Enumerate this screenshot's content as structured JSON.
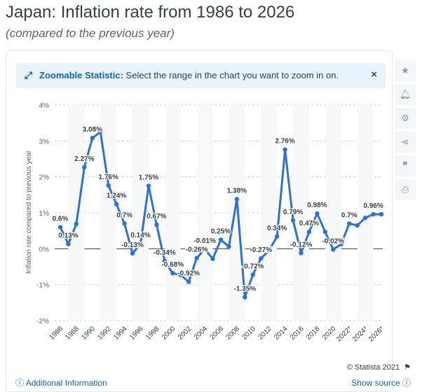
{
  "header": {
    "title": "Japan: Inflation rate from 1986 to 2026",
    "subtitle": "(compared to the previous year)"
  },
  "banner": {
    "bold": "Zoomable Statistic:",
    "text": "Select the range in the chart you want to zoom in on.",
    "close": "×"
  },
  "side_icons": [
    "star-icon",
    "bell-icon",
    "gear-icon",
    "share-icon",
    "quote-icon",
    "print-icon"
  ],
  "footer": {
    "copyright": "© Statista 2021",
    "additional_info": "Additional Information",
    "show_source": "Show source"
  },
  "colors": {
    "line": "#2a72d8",
    "grid": "#c9d0d8",
    "accent": "#0b65c2"
  },
  "chart_data": {
    "type": "line",
    "ylabel": "Inflation rate compared to previous year",
    "ylim": [
      -2,
      4
    ],
    "yticks": [
      -2,
      -1,
      0,
      1,
      2,
      3,
      4
    ],
    "ytick_labels": [
      "-2%",
      "-1%",
      "0%",
      "1%",
      "2%",
      "3%",
      "4%"
    ],
    "xticks": [
      "1986",
      "1988",
      "1990",
      "1992",
      "1994",
      "1996",
      "1998",
      "2000",
      "2002",
      "2004",
      "2006",
      "2008",
      "2010",
      "2012",
      "2014",
      "2016",
      "2018",
      "2020",
      "2022*",
      "2024*",
      "2026*"
    ],
    "x": [
      1986,
      1987,
      1988,
      1989,
      1990,
      1991,
      1992,
      1993,
      1994,
      1995,
      1996,
      1997,
      1998,
      1999,
      2000,
      2001,
      2002,
      2003,
      2004,
      2005,
      2006,
      2007,
      2008,
      2009,
      2010,
      2011,
      2012,
      2013,
      2014,
      2015,
      2016,
      2017,
      2018,
      2019,
      2020,
      2021,
      2022,
      2023,
      2024,
      2025,
      2026
    ],
    "values": [
      0.6,
      0.13,
      0.69,
      2.27,
      3.08,
      3.25,
      1.76,
      1.24,
      0.7,
      -0.13,
      0.14,
      1.75,
      0.67,
      -0.34,
      -0.68,
      -0.73,
      -0.92,
      -0.26,
      -0.01,
      -0.28,
      0.25,
      0.06,
      1.38,
      -1.35,
      -0.72,
      -0.27,
      -0.05,
      0.34,
      2.76,
      0.79,
      -0.12,
      0.47,
      0.98,
      0.47,
      -0.02,
      0.13,
      0.7,
      0.65,
      0.86,
      0.96,
      0.96
    ],
    "data_labels": [
      {
        "x": 1986,
        "text": "0.6%"
      },
      {
        "x": 1987,
        "text": "0.13%"
      },
      {
        "x": 1989,
        "text": "2.27%"
      },
      {
        "x": 1990,
        "text": "3.08%"
      },
      {
        "x": 1992,
        "text": "1.76%"
      },
      {
        "x": 1993,
        "text": "1.24%"
      },
      {
        "x": 1994,
        "text": "0.7%"
      },
      {
        "x": 1995,
        "text": "-0.13%"
      },
      {
        "x": 1996,
        "text": "0.14%"
      },
      {
        "x": 1997,
        "text": "1.75%"
      },
      {
        "x": 1998,
        "text": "0.67%"
      },
      {
        "x": 1999,
        "text": "-0.34%"
      },
      {
        "x": 2000,
        "text": "-0.68%"
      },
      {
        "x": 2002,
        "text": "-0.92%"
      },
      {
        "x": 2003,
        "text": "-0.26%"
      },
      {
        "x": 2004,
        "text": "-0.01%"
      },
      {
        "x": 2006,
        "text": "0.25%"
      },
      {
        "x": 2008,
        "text": "1.38%"
      },
      {
        "x": 2009,
        "text": "-1.35%"
      },
      {
        "x": 2010,
        "text": "-0.72%"
      },
      {
        "x": 2011,
        "text": "-0.27%"
      },
      {
        "x": 2013,
        "text": "0.34%"
      },
      {
        "x": 2014,
        "text": "2.76%"
      },
      {
        "x": 2015,
        "text": "0.79%"
      },
      {
        "x": 2016,
        "text": "-0.12%"
      },
      {
        "x": 2017,
        "text": "0.47%"
      },
      {
        "x": 2018,
        "text": "0.98%"
      },
      {
        "x": 2020,
        "text": "-0.02%"
      },
      {
        "x": 2022,
        "text": "0.7%"
      },
      {
        "x": 2025,
        "text": "0.96%"
      }
    ],
    "grid": true
  }
}
